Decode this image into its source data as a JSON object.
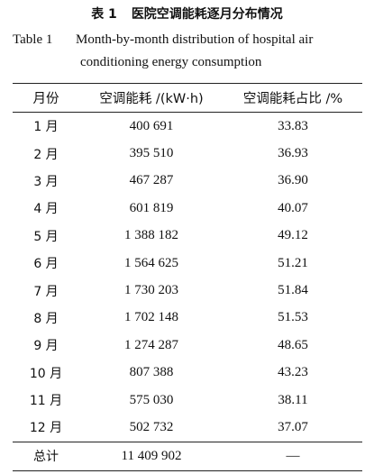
{
  "caption": {
    "zh_label": "表 1",
    "zh_title": "医院空调能耗逐月分布情况",
    "en_label": "Table 1",
    "en_title_line1": "Month-by-month distribution of hospital air",
    "en_title_line2": "conditioning energy consumption"
  },
  "table": {
    "headers": [
      "月份",
      "空调能耗 /(kW·h)",
      "空调能耗占比 /%"
    ],
    "rows": [
      {
        "month": "1 月",
        "energy": "400 691",
        "ratio": "33.83"
      },
      {
        "month": "2 月",
        "energy": "395 510",
        "ratio": "36.93"
      },
      {
        "month": "3 月",
        "energy": "467 287",
        "ratio": "36.90"
      },
      {
        "month": "4 月",
        "energy": "601 819",
        "ratio": "40.07"
      },
      {
        "month": "5 月",
        "energy": "1 388 182",
        "ratio": "49.12"
      },
      {
        "month": "6 月",
        "energy": "1 564 625",
        "ratio": "51.21"
      },
      {
        "month": "7 月",
        "energy": "1 730 203",
        "ratio": "51.84"
      },
      {
        "month": "8 月",
        "energy": "1 702 148",
        "ratio": "51.53"
      },
      {
        "month": "9 月",
        "energy": "1 274 287",
        "ratio": "48.65"
      },
      {
        "month": "10 月",
        "energy": "807 388",
        "ratio": "43.23"
      },
      {
        "month": "11 月",
        "energy": "575 030",
        "ratio": "38.11"
      },
      {
        "month": "12 月",
        "energy": "502 732",
        "ratio": "37.07"
      }
    ],
    "total": {
      "month": "总计",
      "energy": "11 409 902",
      "ratio": "—"
    }
  }
}
